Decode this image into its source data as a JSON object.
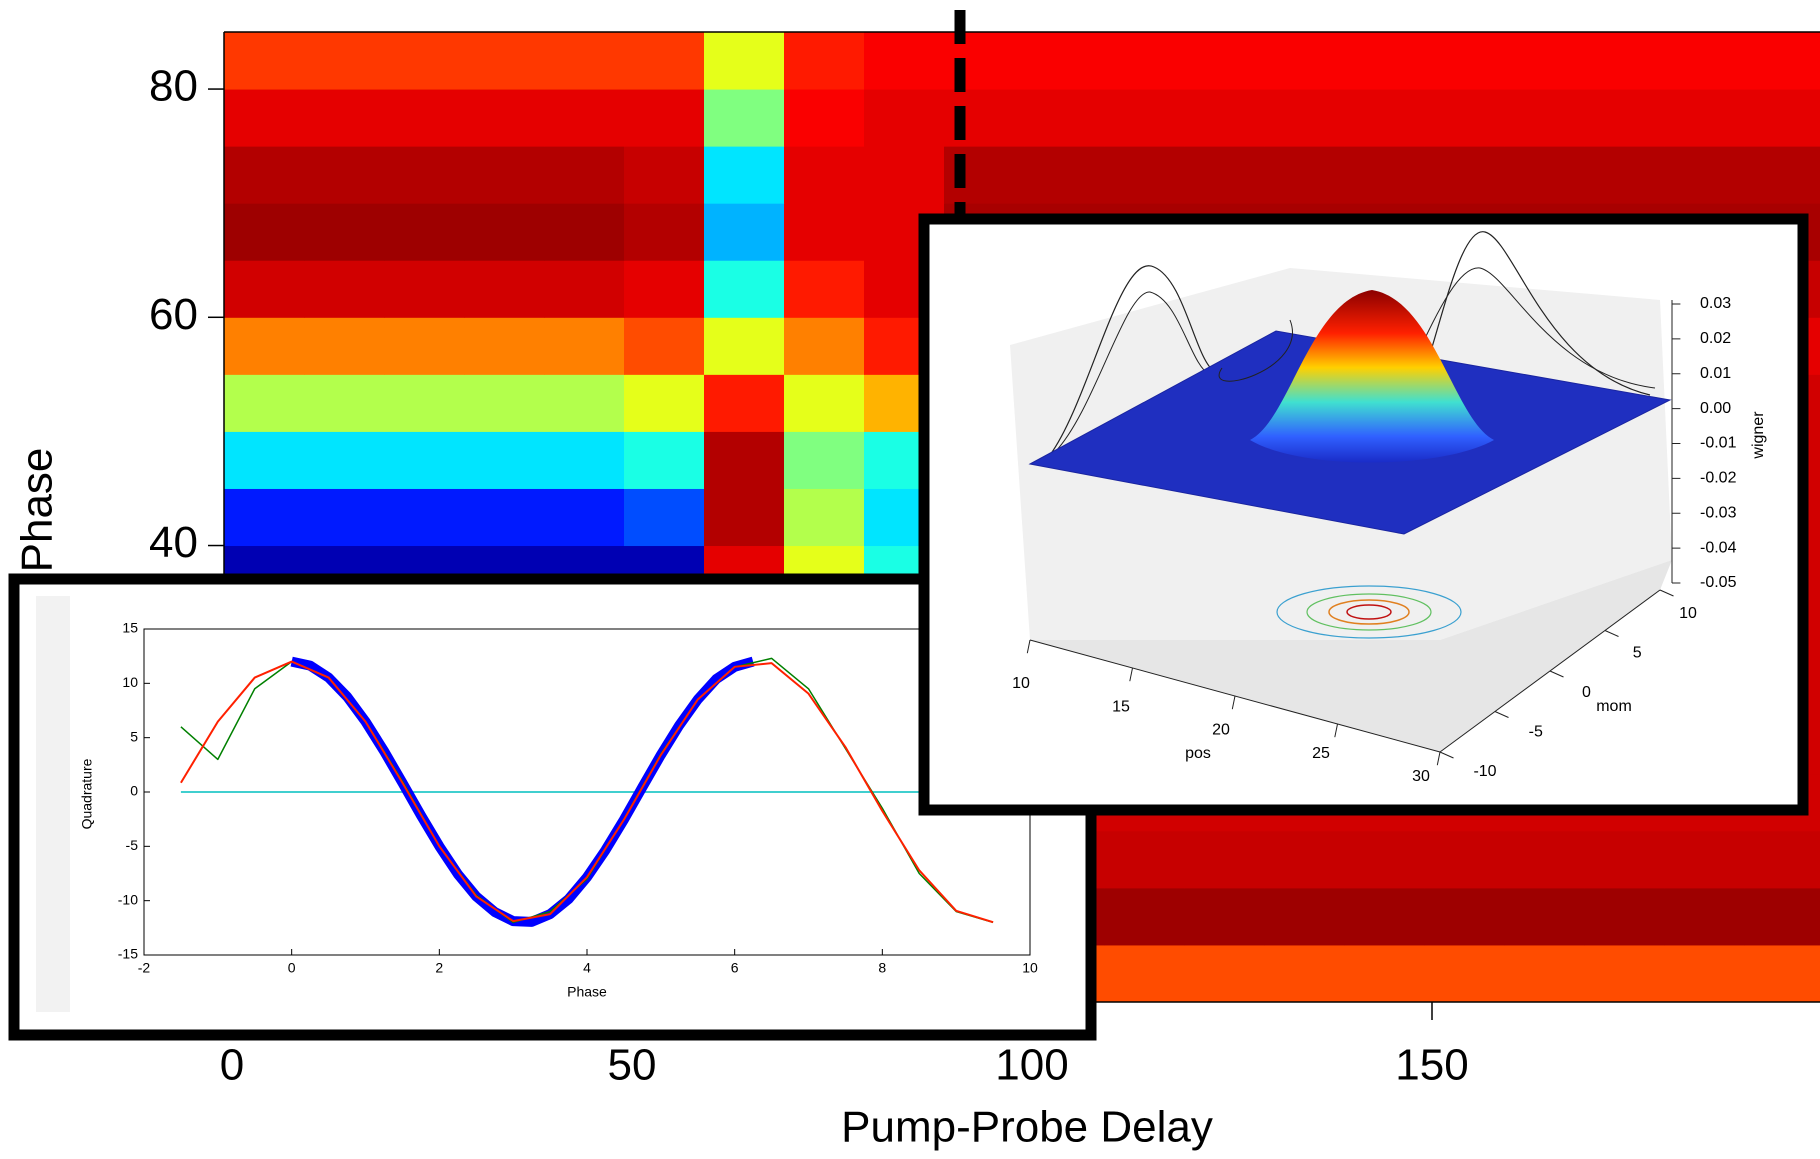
{
  "chart_data": [
    {
      "type": "heatmap",
      "colormap": "jet",
      "xlabel": "Pump-Probe Delay",
      "ylabel": "Phase",
      "xlim": [
        -1,
        198.5
      ],
      "ylim": [
        0,
        85
      ],
      "xticks": [
        0,
        50,
        100,
        150
      ],
      "yticks": [
        40,
        60,
        80
      ],
      "vlines": [
        91
      ],
      "x": [
        4,
        14,
        24,
        34,
        44,
        54,
        64,
        74,
        84,
        94,
        104,
        114,
        124,
        134,
        144,
        154,
        164,
        174,
        184,
        194
      ],
      "y": [
        2.5,
        7.5,
        12.5,
        17.5,
        22.5,
        27.5,
        32.5,
        37.5,
        42.5,
        47.5,
        52.5,
        57.5,
        62.5,
        67.5,
        72.5,
        77.5,
        82.5
      ],
      "z": [
        [
          0.8,
          0.8,
          0.8,
          0.8,
          0.8,
          0.8,
          0.8,
          0.8,
          0.8,
          0.8,
          0.8,
          0.8,
          0.8,
          0.8,
          0.8,
          0.8,
          0.8,
          0.8,
          0.8,
          0.8
        ],
        [
          0.97,
          0.97,
          0.97,
          0.97,
          0.97,
          0.97,
          0.97,
          0.97,
          0.97,
          0.97,
          0.97,
          0.97,
          0.97,
          0.97,
          0.97,
          0.97,
          0.97,
          0.97,
          0.97,
          0.97
        ],
        [
          0.93,
          0.93,
          0.93,
          0.93,
          0.93,
          0.93,
          0.93,
          0.93,
          0.93,
          0.93,
          0.93,
          0.93,
          0.93,
          0.93,
          0.93,
          0.93,
          0.93,
          0.93,
          0.93,
          0.93
        ],
        [
          0.05,
          0.05,
          0.05,
          0.05,
          0.05,
          0.05,
          0.9,
          0.6,
          0.4,
          0.92,
          0.92,
          0.92,
          0.92,
          0.92,
          0.92,
          0.92,
          0.92,
          0.92,
          0.92,
          0.92
        ],
        [
          0.05,
          0.05,
          0.05,
          0.05,
          0.05,
          0.05,
          0.9,
          0.6,
          0.4,
          0.92,
          0.92,
          0.92,
          0.92,
          0.92,
          0.92,
          0.92,
          0.92,
          0.92,
          0.92,
          0.92
        ],
        [
          0.05,
          0.05,
          0.05,
          0.05,
          0.05,
          0.05,
          0.9,
          0.6,
          0.4,
          0.92,
          0.92,
          0.92,
          0.92,
          0.92,
          0.92,
          0.92,
          0.92,
          0.92,
          0.92,
          0.92
        ],
        [
          0.05,
          0.05,
          0.05,
          0.05,
          0.05,
          0.05,
          0.9,
          0.6,
          0.4,
          0.92,
          0.92,
          0.92,
          0.92,
          0.92,
          0.92,
          0.92,
          0.92,
          0.92,
          0.92,
          0.92
        ],
        [
          0.05,
          0.05,
          0.05,
          0.05,
          0.05,
          0.05,
          0.9,
          0.6,
          0.4,
          0.92,
          0.92,
          0.92,
          0.92,
          0.92,
          0.92,
          0.92,
          0.92,
          0.92,
          0.92,
          0.92
        ],
        [
          0.15,
          0.15,
          0.15,
          0.15,
          0.15,
          0.2,
          0.95,
          0.55,
          0.35,
          0.92,
          0.92,
          0.92,
          0.92,
          0.92,
          0.92,
          0.92,
          0.92,
          0.92,
          0.92,
          0.92
        ],
        [
          0.35,
          0.35,
          0.35,
          0.35,
          0.35,
          0.4,
          0.95,
          0.5,
          0.4,
          0.92,
          0.92,
          0.92,
          0.92,
          0.92,
          0.92,
          0.92,
          0.92,
          0.92,
          0.92,
          0.92
        ],
        [
          0.55,
          0.55,
          0.55,
          0.55,
          0.55,
          0.6,
          0.85,
          0.6,
          0.7,
          0.92,
          0.92,
          0.92,
          0.92,
          0.92,
          0.92,
          0.92,
          0.92,
          0.92,
          0.92,
          0.92
        ],
        [
          0.75,
          0.75,
          0.75,
          0.75,
          0.75,
          0.8,
          0.6,
          0.75,
          0.85,
          0.9,
          0.9,
          0.9,
          0.9,
          0.9,
          0.9,
          0.9,
          0.9,
          0.9,
          0.9,
          0.9
        ],
        [
          0.92,
          0.92,
          0.92,
          0.92,
          0.92,
          0.9,
          0.4,
          0.85,
          0.9,
          0.93,
          0.93,
          0.93,
          0.93,
          0.93,
          0.93,
          0.93,
          0.93,
          0.93,
          0.93,
          0.93
        ],
        [
          0.97,
          0.97,
          0.97,
          0.97,
          0.97,
          0.95,
          0.3,
          0.9,
          0.9,
          0.96,
          0.96,
          0.96,
          0.96,
          0.96,
          0.96,
          0.96,
          0.96,
          0.96,
          0.96,
          0.96
        ],
        [
          0.95,
          0.95,
          0.95,
          0.95,
          0.95,
          0.93,
          0.35,
          0.9,
          0.9,
          0.95,
          0.95,
          0.95,
          0.95,
          0.95,
          0.95,
          0.95,
          0.95,
          0.95,
          0.95,
          0.95
        ],
        [
          0.9,
          0.9,
          0.9,
          0.9,
          0.9,
          0.9,
          0.5,
          0.88,
          0.9,
          0.9,
          0.9,
          0.9,
          0.9,
          0.9,
          0.9,
          0.9,
          0.9,
          0.9,
          0.9,
          0.9
        ],
        [
          0.82,
          0.82,
          0.82,
          0.82,
          0.82,
          0.82,
          0.6,
          0.85,
          0.88,
          0.88,
          0.88,
          0.88,
          0.88,
          0.88,
          0.88,
          0.88,
          0.88,
          0.88,
          0.88,
          0.88
        ]
      ]
    },
    {
      "type": "line",
      "xlabel": "Phase",
      "ylabel": "Quadrature",
      "xlim": [
        -2,
        10
      ],
      "ylim": [
        -15,
        15
      ],
      "xticks": [
        -2,
        0,
        2,
        4,
        6,
        8,
        10
      ],
      "yticks": [
        -15,
        -10,
        -5,
        0,
        5,
        10,
        15
      ],
      "series": [
        {
          "color": "#00bfbf",
          "width": 1.5,
          "x": [
            -1.5,
            9.5
          ],
          "values": [
            0,
            0
          ]
        },
        {
          "color": "#0000ff",
          "width": 10,
          "x": [
            0,
            0.25,
            0.5,
            0.75,
            1,
            1.25,
            1.5,
            1.75,
            2,
            2.25,
            2.5,
            2.75,
            3,
            3.25,
            3.5,
            3.75,
            4,
            4.25,
            4.5,
            4.75,
            5,
            5.25,
            5.5,
            5.75,
            6,
            6.25
          ],
          "values": [
            12,
            11.63,
            10.53,
            8.78,
            6.48,
            3.78,
            0.85,
            -2.14,
            -4.99,
            -7.55,
            -9.61,
            -11.04,
            -11.88,
            -11.95,
            -11.24,
            -9.86,
            -7.84,
            -5.35,
            -2.55,
            0.45,
            3.4,
            6.14,
            8.51,
            10.39,
            11.52,
            12
          ]
        },
        {
          "color": "#008000",
          "width": 1.5,
          "x": [
            -1.5,
            -1,
            -0.5,
            0,
            0.5,
            1,
            1.5,
            2,
            2.5,
            3,
            3.5,
            4,
            4.5,
            5,
            5.5,
            6,
            6.5,
            7,
            7.5,
            8,
            8.5,
            9,
            9.5
          ],
          "values": [
            6,
            3,
            9.5,
            12,
            10.5,
            6.5,
            1,
            -5,
            -9.5,
            -12,
            -11,
            -8,
            -2.5,
            3.5,
            8.5,
            11.5,
            12.3,
            9.5,
            4,
            -1.5,
            -7.5,
            -11,
            -12
          ]
        },
        {
          "color": "#ff2000",
          "width": 2,
          "x": [
            -1.5,
            -1,
            -0.5,
            0,
            0.5,
            1,
            1.5,
            2,
            2.5,
            3,
            3.5,
            4,
            4.5,
            5,
            5.5,
            6,
            6.5,
            7,
            7.5,
            8,
            8.5,
            9,
            9.5
          ],
          "values": [
            0.85,
            6.48,
            10.53,
            12,
            10.53,
            6.48,
            0.85,
            -4.99,
            -9.61,
            -11.88,
            -11.24,
            -7.84,
            -2.55,
            3.4,
            8.51,
            11.52,
            11.86,
            9.05,
            4.14,
            -1.75,
            -7.21,
            -10.93,
            -11.98
          ]
        }
      ]
    },
    {
      "type": "surface3d",
      "xlabel": "pos",
      "ylabel": "mom",
      "zlabel": "wigner",
      "xlim": [
        10,
        30
      ],
      "xticks": [
        10,
        15,
        20,
        25,
        30
      ],
      "ylim": [
        -10,
        10
      ],
      "yticks": [
        -10,
        -5,
        0,
        5,
        10
      ],
      "zlim": [
        -0.05,
        0.03
      ],
      "zticks": [
        0.03,
        0.02,
        0.01,
        {
          "value": 0,
          "label": "0.00"
        },
        -0.01,
        -0.02,
        -0.03,
        -0.04,
        -0.05
      ]
    }
  ]
}
